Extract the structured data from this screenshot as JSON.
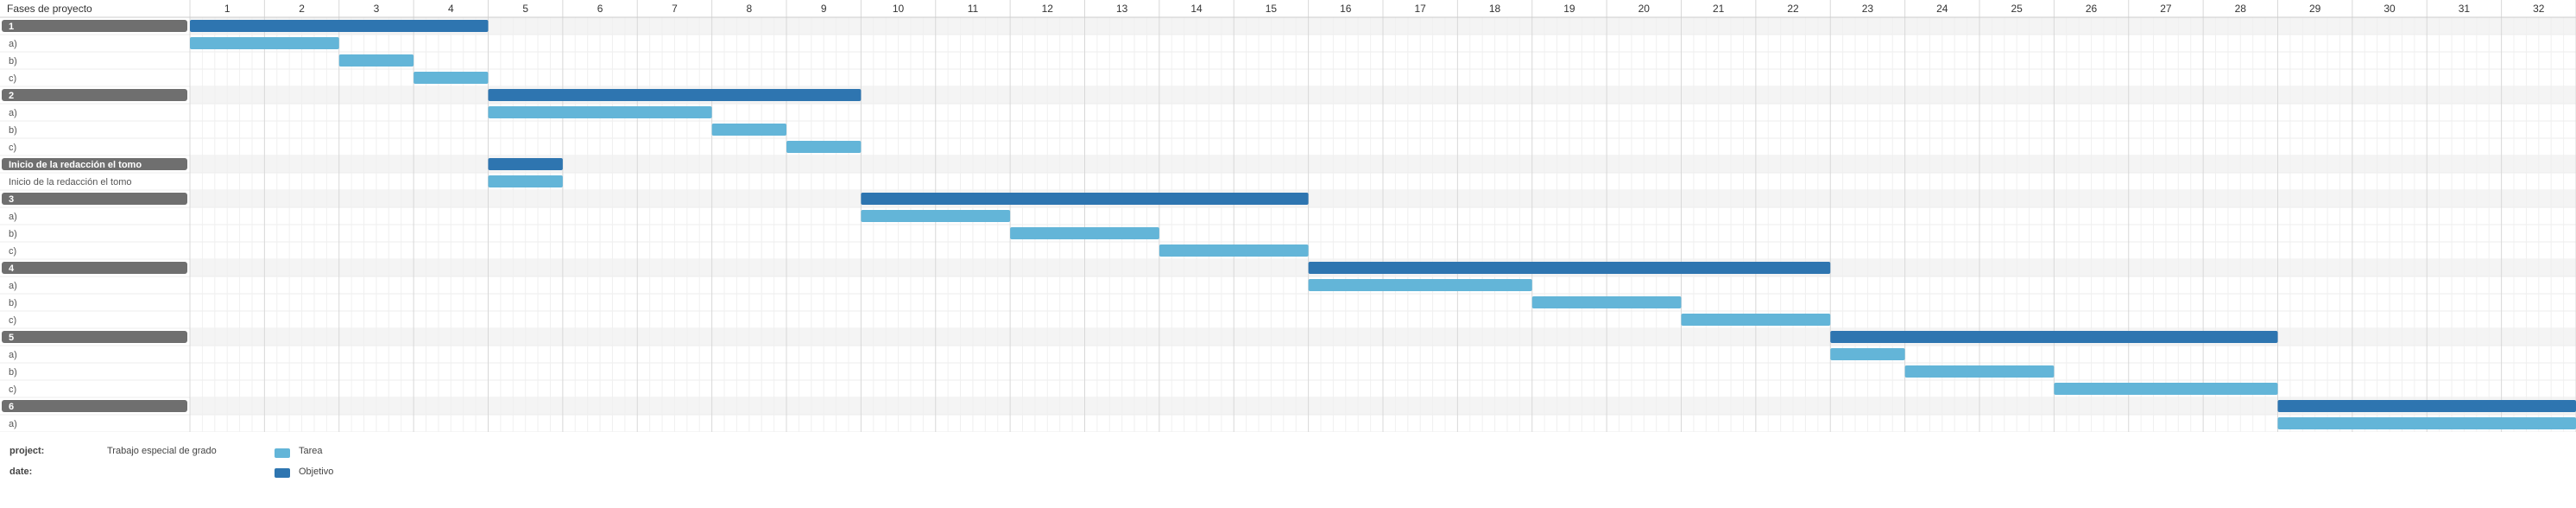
{
  "header": {
    "label": "Fases de proyecto"
  },
  "chart_data": {
    "type": "gantt",
    "periods": [
      "1",
      "2",
      "3",
      "4",
      "5",
      "6",
      "7",
      "8",
      "9",
      "10",
      "11",
      "12",
      "13",
      "14",
      "15",
      "16",
      "17",
      "18",
      "19",
      "20",
      "21",
      "22",
      "23",
      "24",
      "25",
      "26",
      "27",
      "28",
      "29",
      "30",
      "31",
      "32"
    ],
    "rows": [
      {
        "label": "1",
        "kind": "objective",
        "start": 1,
        "end": 4
      },
      {
        "label": "a)",
        "kind": "task",
        "start": 1,
        "end": 2
      },
      {
        "label": "b)",
        "kind": "task",
        "start": 3,
        "end": 3
      },
      {
        "label": "c)",
        "kind": "task",
        "start": 4,
        "end": 4
      },
      {
        "label": "2",
        "kind": "objective",
        "start": 5,
        "end": 9
      },
      {
        "label": "a)",
        "kind": "task",
        "start": 5,
        "end": 7
      },
      {
        "label": "b)",
        "kind": "task",
        "start": 8,
        "end": 8
      },
      {
        "label": "c)",
        "kind": "task",
        "start": 9,
        "end": 9
      },
      {
        "label": "Inicio de la redacción el tomo",
        "kind": "objective",
        "start": 5,
        "end": 5
      },
      {
        "label": "Inicio de la redacción el tomo",
        "kind": "task",
        "start": 5,
        "end": 5
      },
      {
        "label": "3",
        "kind": "objective",
        "start": 10,
        "end": 15
      },
      {
        "label": "a)",
        "kind": "task",
        "start": 10,
        "end": 11
      },
      {
        "label": "b)",
        "kind": "task",
        "start": 12,
        "end": 13
      },
      {
        "label": "c)",
        "kind": "task",
        "start": 14,
        "end": 15
      },
      {
        "label": "4",
        "kind": "objective",
        "start": 16,
        "end": 22
      },
      {
        "label": "a)",
        "kind": "task",
        "start": 16,
        "end": 18
      },
      {
        "label": "b)",
        "kind": "task",
        "start": 19,
        "end": 20
      },
      {
        "label": "c)",
        "kind": "task",
        "start": 21,
        "end": 22
      },
      {
        "label": "5",
        "kind": "objective",
        "start": 23,
        "end": 28
      },
      {
        "label": "a)",
        "kind": "task",
        "start": 23,
        "end": 23
      },
      {
        "label": "b)",
        "kind": "task",
        "start": 24,
        "end": 25
      },
      {
        "label": "c)",
        "kind": "task",
        "start": 26,
        "end": 28
      },
      {
        "label": "6",
        "kind": "objective",
        "start": 29,
        "end": 32
      },
      {
        "label": "a)",
        "kind": "task",
        "start": 29,
        "end": 32
      }
    ],
    "colors": {
      "task": "#63b5d8",
      "objective": "#2e75b0",
      "group_label_bg": "#6f6f6f"
    }
  },
  "legend": {
    "project_label": "project:",
    "project_value": "Trabajo especial de grado",
    "date_label": "date:",
    "task_label": "Tarea",
    "objective_label": "Objetivo"
  }
}
